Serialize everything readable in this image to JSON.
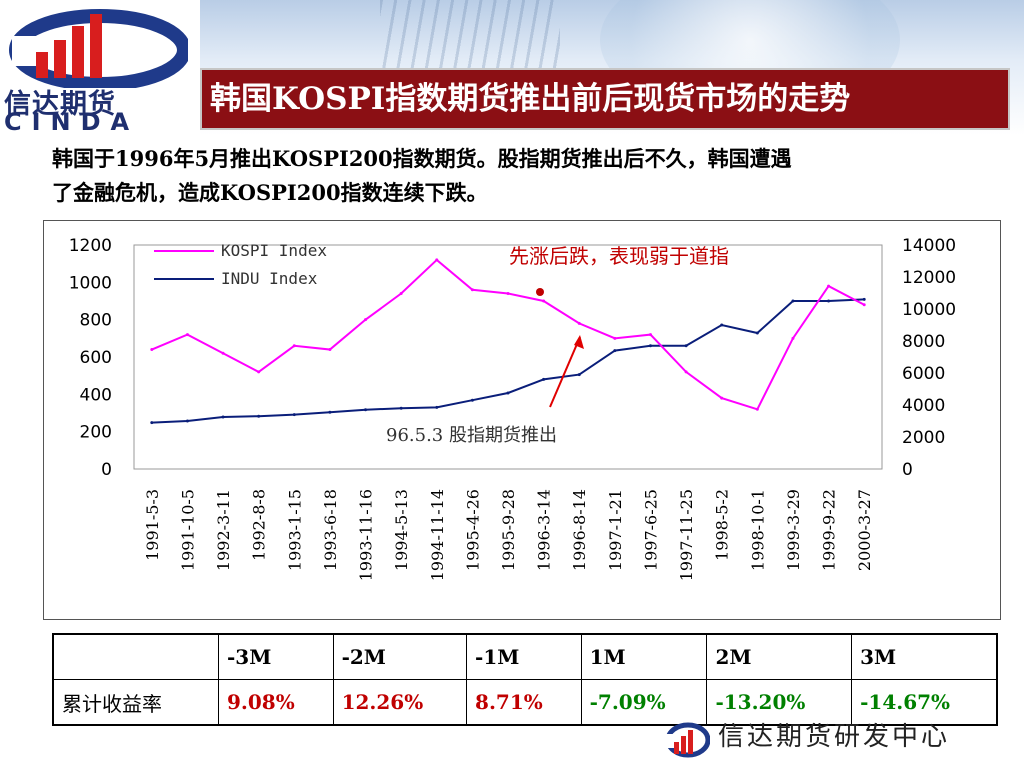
{
  "header": {
    "logo_cn": "信达期货",
    "logo_en": "CINDA",
    "title": "韩国KOSPI指数期货推出前后现货市场的走势"
  },
  "intro": {
    "line1": "韩国于1996年5月推出KOSPI200指数期货。股指期货推出后不久，韩国遭遇",
    "line2": "了金融危机，造成KOSPI200指数连续下跌。"
  },
  "chart_data": {
    "type": "line",
    "x": [
      "1991-5-3",
      "1991-10-5",
      "1992-3-11",
      "1992-8-8",
      "1993-1-15",
      "1993-6-18",
      "1993-11-16",
      "1994-5-13",
      "1994-11-14",
      "1995-4-26",
      "1995-9-28",
      "1996-3-14",
      "1996-8-14",
      "1997-1-21",
      "1997-6-25",
      "1997-11-25",
      "1998-5-2",
      "1998-10-1",
      "1999-3-29",
      "1999-9-22",
      "2000-3-27"
    ],
    "series": [
      {
        "name": "KOSPI Index",
        "axis": "left",
        "color": "#ff00ff",
        "values": [
          640,
          720,
          620,
          520,
          660,
          640,
          800,
          940,
          1120,
          960,
          940,
          900,
          780,
          700,
          720,
          520,
          380,
          320,
          700,
          980,
          880
        ]
      },
      {
        "name": "INDU Index",
        "axis": "right",
        "color": "#0a1e7a",
        "values": [
          2900,
          3000,
          3250,
          3300,
          3400,
          3550,
          3700,
          3800,
          3850,
          4300,
          4750,
          5600,
          5900,
          7400,
          7700,
          7700,
          9000,
          8500,
          10500,
          10500,
          10600
        ]
      }
    ],
    "left_axis": {
      "ylim": [
        0,
        1200
      ],
      "ticks": [
        "0",
        "200",
        "400",
        "600",
        "800",
        "1000",
        "1200"
      ]
    },
    "right_axis": {
      "ylim": [
        0,
        14000
      ],
      "ticks": [
        "0",
        "2000",
        "4000",
        "6000",
        "8000",
        "10000",
        "12000",
        "14000"
      ]
    },
    "legend": [
      "KOSPI Index",
      "INDU Index"
    ],
    "legend_position": "top-left",
    "annotations": {
      "peak_note": "先涨后跌，表现弱于道指",
      "launch_note": "96.5.3 股指期货推出"
    }
  },
  "table": {
    "headers": [
      "",
      "-3M",
      "-2M",
      "-1M",
      "1M",
      "2M",
      "3M"
    ],
    "row_label": "累计收益率",
    "values": [
      "9.08%",
      "12.26%",
      "8.71%",
      "-7.09%",
      "-13.20%",
      "-14.67%"
    ]
  },
  "footer": {
    "text": "信达期货研发中心"
  },
  "colors": {
    "title_bg": "#8b0f14",
    "positive": "#c00000",
    "negative": "#008000",
    "kospi": "#ff00ff",
    "indu": "#0a1e7a"
  }
}
